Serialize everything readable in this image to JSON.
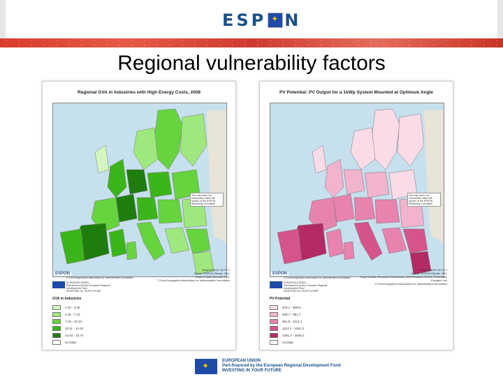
{
  "header": {
    "logo_text_left": "ESP",
    "logo_text_right": "N"
  },
  "slide": {
    "title": "Regional vulnerability factors"
  },
  "maps": [
    {
      "title": "Regional GVA in Industries with High Energy Costs, 2008",
      "note": "This map does not necessarily reflect the opinion of the ESPON Monitoring Committee",
      "espon_logo": "ESPON",
      "copyright": "© EuroGeographics Association for administrative boundaries",
      "credits": "Regional level: NUTS 2\nSource: ESPON Climate, 2011\nOrigin of data: Eurostat, 2011\n© EuroGeographics Association for administrative boundaries",
      "eu_text": "EUROPEAN UNION\nPart-financed by the European Regional Development Fund\nINVESTING IN YOUR FUTURE",
      "legend_title": "GVA in Industries",
      "legend": [
        {
          "label": "1.10 - 3.45",
          "color": "#d4f5c0"
        },
        {
          "label": "3.46 - 7.15",
          "color": "#9ee87d"
        },
        {
          "label": "7.16 - 10.10",
          "color": "#66d43c"
        },
        {
          "label": "10.11 - 14.43",
          "color": "#3bb51a"
        },
        {
          "label": "14.44 - 23.72",
          "color": "#1f7d0d"
        },
        {
          "label": "no Data",
          "color": "#ffffff"
        }
      ],
      "palette": [
        "#d4f5c0",
        "#9ee87d",
        "#66d43c",
        "#3bb51a",
        "#1f7d0d"
      ]
    },
    {
      "title": "PV Potential: PV Output for a 1kWp System Mounted at Optimum Angle",
      "note": "This map does not necessarily reflect the opinion of the ESPON Monitoring Committee",
      "espon_logo": "ESPON",
      "copyright": "© EuroGeographics Association for administrative boundaries",
      "credits": "Regional level: NUTS 2\nSource: ESPON Climate, 2011\nOrigin of data: European Commission, Joint Research Centre, Renewable Energies Unit\n© EuroGeographics Association for administrative boundaries",
      "eu_text": "EUROPEAN UNION\nPart-financed by the European Regional Development Fund\nINVESTING IN YOUR FUTURE",
      "legend_title": "PV Potential",
      "legend": [
        {
          "label": "575.1 - 849.6",
          "color": "#fadbe8"
        },
        {
          "label": "849.7 - 951.7",
          "color": "#f2b3cf"
        },
        {
          "label": "951.8 - 1113.1",
          "color": "#e783ae"
        },
        {
          "label": "1113.2 - 1281.3",
          "color": "#d4548b"
        },
        {
          "label": "1281.4 - 1626.2",
          "color": "#b32a66"
        },
        {
          "label": "no Data",
          "color": "#ffffff"
        }
      ],
      "palette": [
        "#fadbe8",
        "#f2b3cf",
        "#e783ae",
        "#d4548b",
        "#b32a66"
      ]
    }
  ],
  "footer": {
    "line1": "EUROPEAN UNION",
    "line2": "Part-financed by the European Regional Development Fund",
    "line3": "INVESTING IN YOUR FUTURE"
  }
}
